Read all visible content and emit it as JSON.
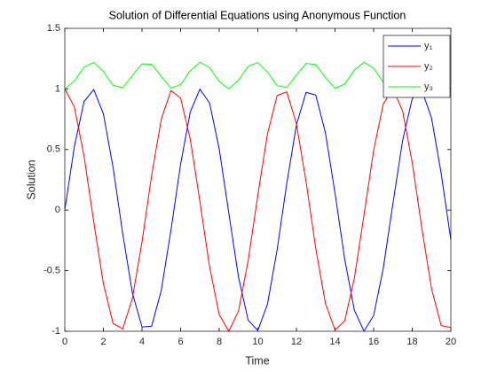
{
  "chart_data": {
    "type": "line",
    "title": "Solution of Differential Equations using Anonymous Function",
    "xlabel": "Time",
    "ylabel": "Solution",
    "x": [
      0,
      0.5,
      1,
      1.5,
      2,
      2.5,
      3,
      3.5,
      4,
      4.5,
      5,
      5.5,
      6,
      6.5,
      7,
      7.5,
      8,
      8.5,
      9,
      9.5,
      10,
      10.5,
      11,
      11.5,
      12,
      12.5,
      13,
      13.5,
      14,
      14.5,
      15,
      15.5,
      16,
      16.5,
      17,
      17.5,
      18,
      18.5,
      19,
      19.5,
      20
    ],
    "series": [
      {
        "name": "y₁",
        "color": "#0000ff",
        "values": [
          0,
          0.528,
          0.896,
          0.995,
          0.794,
          0.354,
          -0.194,
          -0.683,
          -0.965,
          -0.958,
          -0.662,
          -0.166,
          0.379,
          0.81,
          0.998,
          0.884,
          0.505,
          -0.028,
          -0.553,
          -0.909,
          -0.993,
          -0.777,
          -0.328,
          0.22,
          0.702,
          0.972,
          0.95,
          0.64,
          0.139,
          -0.404,
          -0.826,
          -0.999,
          -0.871,
          -0.48,
          0.055,
          0.574,
          0.92,
          0.988,
          0.76,
          0.302,
          -0.247
        ]
      },
      {
        "name": "y₂",
        "color": "#ff0000",
        "values": [
          1,
          0.849,
          0.443,
          -0.097,
          -0.608,
          -0.935,
          -0.981,
          -0.73,
          -0.262,
          0.287,
          0.75,
          0.986,
          0.925,
          0.586,
          0.07,
          -0.467,
          -0.863,
          -1.0,
          -0.833,
          -0.418,
          0.123,
          0.629,
          0.945,
          0.975,
          0.712,
          0.234,
          -0.314,
          -0.768,
          -0.99,
          -0.915,
          -0.564,
          -0.042,
          0.491,
          0.877,
          0.998,
          0.819,
          0.392,
          -0.152,
          -0.65,
          -0.953,
          -0.969
        ]
      },
      {
        "name": "y₃",
        "color": "#00ff00",
        "values": [
          1,
          1.066,
          1.18,
          1.219,
          1.144,
          1.03,
          1.009,
          1.109,
          1.207,
          1.204,
          1.102,
          1.007,
          1.035,
          1.149,
          1.22,
          1.176,
          1.061,
          1.0,
          1.072,
          1.185,
          1.218,
          1.138,
          1.026,
          1.012,
          1.114,
          1.21,
          1.201,
          1.096,
          1.005,
          1.039,
          1.155,
          1.22,
          1.171,
          1.055,
          1.002,
          1.077,
          1.19,
          1.216,
          1.133,
          1.022,
          1.015
        ]
      }
    ],
    "xlim": [
      0,
      20
    ],
    "xticks": [
      0,
      2,
      4,
      6,
      8,
      10,
      12,
      14,
      16,
      18,
      20
    ],
    "ylim": [
      -1,
      1.5
    ],
    "yticks": [
      -1,
      -0.5,
      0,
      0.5,
      1,
      1.5
    ],
    "grid": false,
    "legend": "northeast"
  }
}
